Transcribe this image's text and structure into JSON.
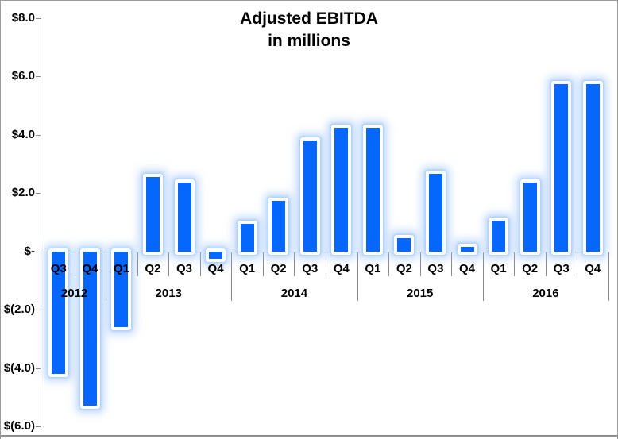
{
  "title": {
    "line1": "Adjusted EBITDA",
    "line2": "in millions"
  },
  "y_axis": {
    "labels": [
      "$8.0",
      "$6.0",
      "$4.0",
      "$2.0",
      "$-",
      "$(2.0)",
      "$(4.0)",
      "$(6.0)"
    ],
    "values": [
      8,
      6,
      4,
      2,
      0,
      -2,
      -4,
      -6
    ]
  },
  "colors": {
    "bar_fill": "#0667FC",
    "bar_outline": "#FFFFFF",
    "bar_glow": "#9CC5FB",
    "axis_line": "#8A8A8A",
    "label_text": "#000000",
    "frame_border": "#9B9B9B",
    "frame_bottom": "#8F8F8F"
  },
  "chart_data": {
    "type": "bar",
    "title": "Adjusted EBITDA",
    "subtitle": "in millions",
    "units": "millions USD",
    "ylim": [
      -6,
      8
    ],
    "y_tick_step": 2,
    "grid": false,
    "legend": "none",
    "groups": [
      {
        "year": "2012",
        "quarters": [
          "Q3",
          "Q4"
        ],
        "values": [
          -4.2,
          -5.3
        ]
      },
      {
        "year": "2013",
        "quarters": [
          "Q1",
          "Q2",
          "Q3",
          "Q4"
        ],
        "values": [
          -2.6,
          2.55,
          2.35,
          -0.25
        ]
      },
      {
        "year": "2014",
        "quarters": [
          "Q1",
          "Q2",
          "Q3",
          "Q4"
        ],
        "values": [
          0.95,
          1.75,
          3.8,
          4.25
        ]
      },
      {
        "year": "2015",
        "quarters": [
          "Q1",
          "Q2",
          "Q3",
          "Q4"
        ],
        "values": [
          4.25,
          0.45,
          2.65,
          0.15
        ]
      },
      {
        "year": "2016",
        "quarters": [
          "Q1",
          "Q2",
          "Q3",
          "Q4"
        ],
        "values": [
          1.05,
          2.35,
          5.75,
          5.75
        ]
      }
    ]
  }
}
